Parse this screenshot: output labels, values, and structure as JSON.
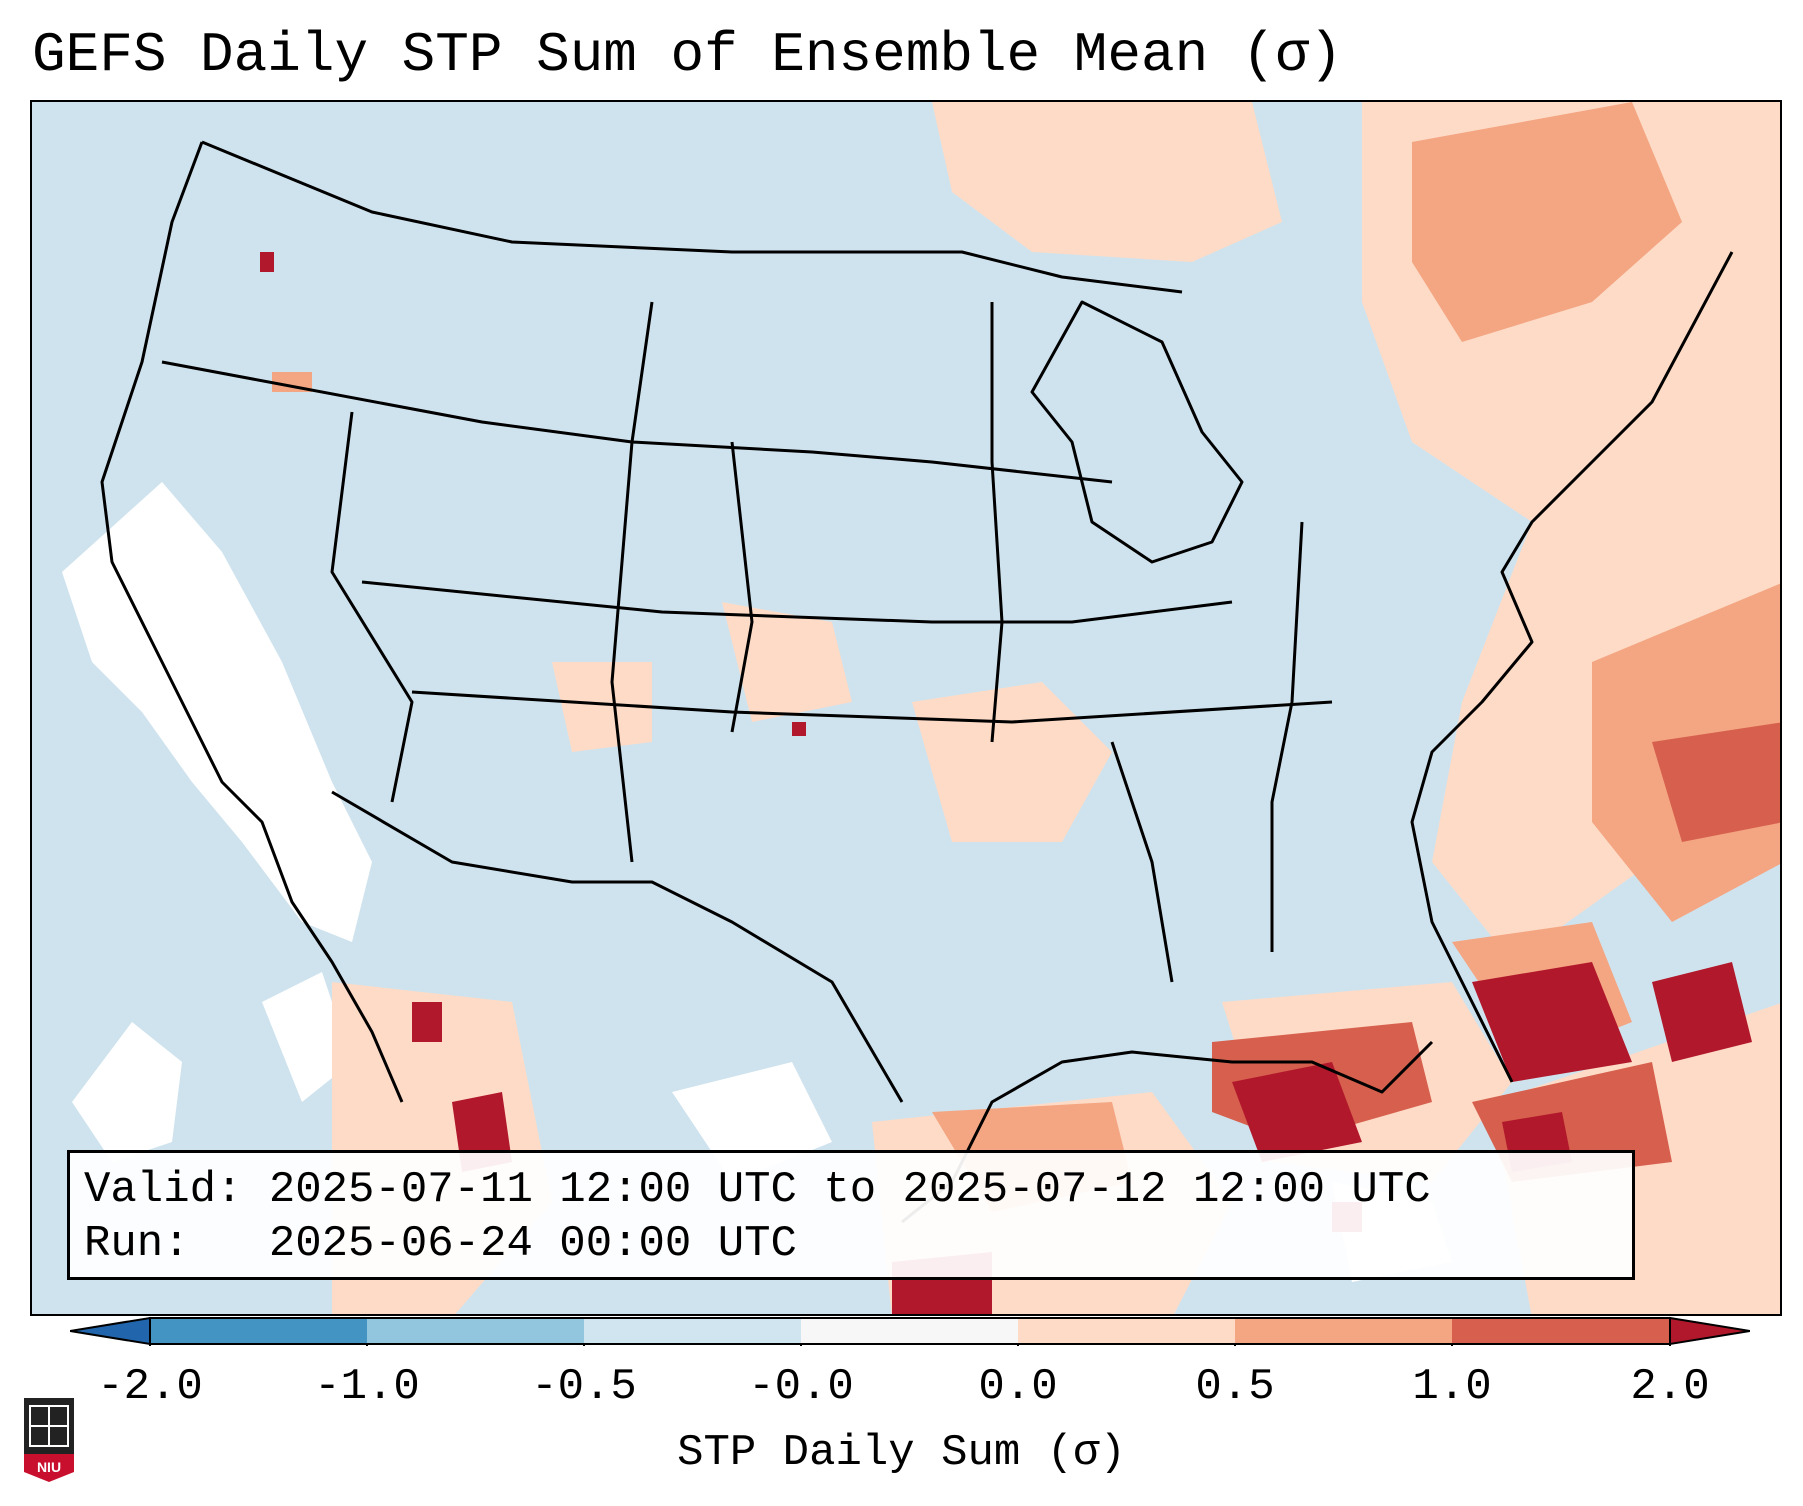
{
  "title": "GEFS Daily STP Sum of Ensemble Mean (σ)",
  "info": {
    "valid_label": "Valid:",
    "valid_value": "2025-07-11 12:00 UTC to 2025-07-12 12:00 UTC",
    "run_label": "Run:",
    "run_value": "2025-06-24 00:00 UTC"
  },
  "colorbar": {
    "label": "STP Daily Sum (σ)",
    "ticks": [
      "-2.0",
      "-1.0",
      "-0.5",
      "-0.0",
      "0.0",
      "0.5",
      "1.0",
      "2.0"
    ],
    "bins": [
      {
        "range": "< -2.0",
        "color": "#2166ac"
      },
      {
        "range": "-2.0 to -1.0",
        "color": "#4393c3"
      },
      {
        "range": "-1.0 to -0.5",
        "color": "#92c5de"
      },
      {
        "range": "-0.5 to -0.0",
        "color": "#d1e5f0"
      },
      {
        "range": "-0.0 to 0.0",
        "color": "#f7f7f7"
      },
      {
        "range": "0.0 to 0.5",
        "color": "#fddbc7"
      },
      {
        "range": "0.5 to 1.0",
        "color": "#f4a582"
      },
      {
        "range": "1.0 to 2.0",
        "color": "#d6604d"
      },
      {
        "range": "> 2.0",
        "color": "#b2182b"
      }
    ]
  },
  "logo": {
    "text": "NIU",
    "color": "#c8102e"
  }
}
